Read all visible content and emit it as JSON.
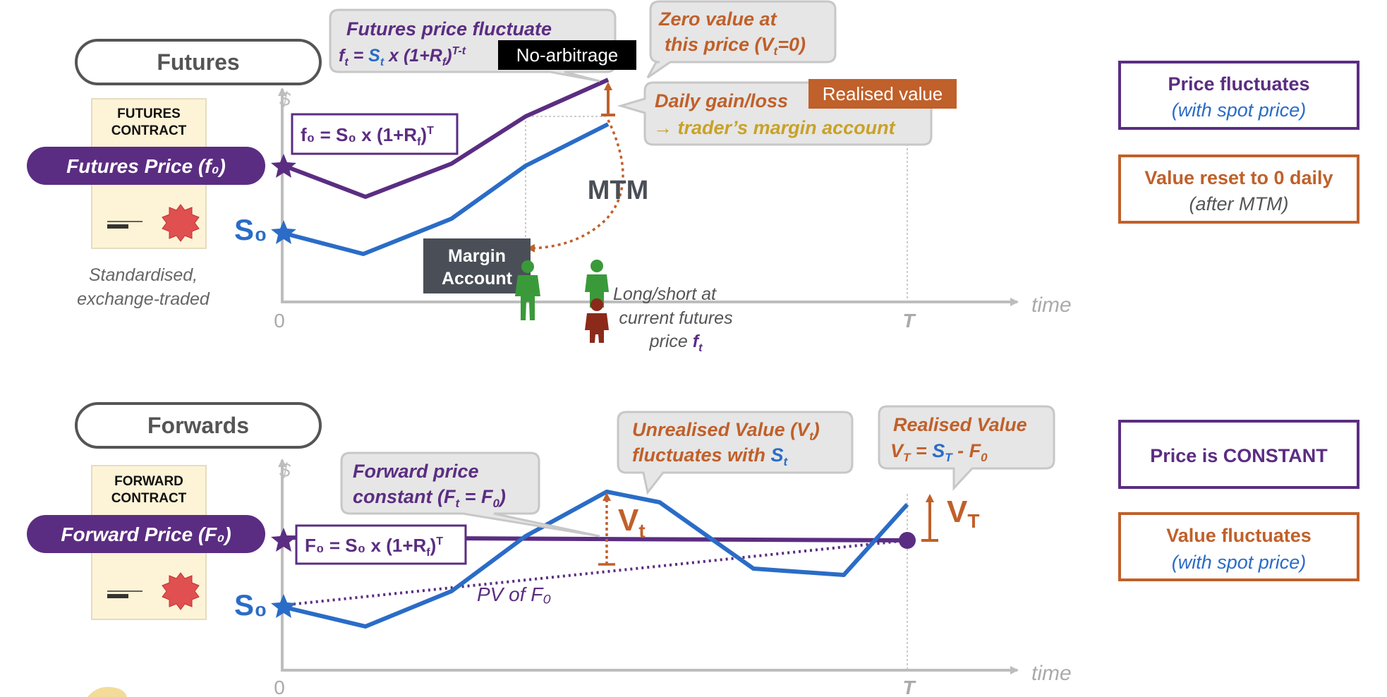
{
  "colors": {
    "purple": "#5b2d82",
    "blue": "#2a6cc7",
    "orange": "#c0602a",
    "gold": "#c9a227",
    "grey": "#9e9e9e",
    "bubble": "#e6e6e6",
    "dark": "#4a4f57",
    "green": "#3a9a3a",
    "maroon": "#8b2a1a",
    "paper": "#fdf3d6"
  },
  "futures": {
    "header": "Futures",
    "contract": [
      "FUTURES",
      "CONTRACT"
    ],
    "price_label": "Futures Price (f₀)",
    "spot_label": "S₀",
    "note": [
      "Standardised,",
      "exchange-traded"
    ],
    "axis": {
      "y": "$",
      "x": "time",
      "zero": "0",
      "t": "T"
    },
    "formula": "f₀ = S₀ x (1+R",
    "formula_sub": "f",
    "formula_sup": "T",
    "formula_close": ")",
    "bubble_fluct": {
      "line1": "Futures price fluctuate",
      "line2_a": "f",
      "line2_b": "t",
      "line2_c": " = ",
      "line2_d": "S",
      "line2_e": "t",
      "line2_f": " x (1+R",
      "line2_g": "f",
      "line2_h": ")",
      "line2_i": "T-t"
    },
    "no_arb": "No-arbitrage",
    "bubble_zero": {
      "line1": "Zero value at",
      "line2_a": "this price (V",
      "line2_b": "t",
      "line2_c": "=0)"
    },
    "bubble_daily": {
      "line1": "Daily gain/loss",
      "line2": "→ trader’s margin account"
    },
    "realised_tag": "Realised value",
    "mtm": "MTM",
    "margin": [
      "Margin",
      "Account"
    ],
    "longshort": [
      "Long/short at",
      "current futures"
    ],
    "longshort_price": "price ",
    "longshort_f": "f",
    "longshort_t": "t",
    "side_box1": {
      "title": "Price fluctuates",
      "sub": "(with spot price)"
    },
    "side_box2": {
      "title": "Value reset to 0 daily",
      "sub": "(after MTM)"
    }
  },
  "forwards": {
    "header": "Forwards",
    "contract": [
      "FORWARD",
      "CONTRACT"
    ],
    "price_label": "Forward Price (F₀)",
    "spot_label": "S₀",
    "axis": {
      "y": "$",
      "x": "time",
      "zero": "0",
      "t": "T"
    },
    "formula": "F₀ = S₀ x (1+R",
    "formula_sub": "f",
    "formula_sup": "T",
    "formula_close": ")",
    "bubble_const": {
      "line1": "Forward price",
      "line2_a": "constant (F",
      "line2_b": "t",
      "line2_c": " = F",
      "line2_d": "0",
      "line2_e": ")"
    },
    "bubble_unreal": {
      "line1_a": "Unrealised Value (V",
      "line1_b": "t",
      "line1_c": ")",
      "line2_a": "fluctuates with ",
      "line2_b": "S",
      "line2_c": "t"
    },
    "bubble_real": {
      "line1": "Realised Value",
      "line2_a": "V",
      "line2_b": "T",
      "line2_c": " = ",
      "line2_d": "S",
      "line2_e": "T",
      "line2_f": " - F",
      "line2_g": "0"
    },
    "vt": "V",
    "vt_sub": "t",
    "vT": "V",
    "vT_sub": "T",
    "pv": "PV of F₀",
    "side_box1": {
      "title": "Price is CONSTANT"
    },
    "side_box2": {
      "title": "Value fluctuates",
      "sub": "(with spot price)"
    }
  }
}
